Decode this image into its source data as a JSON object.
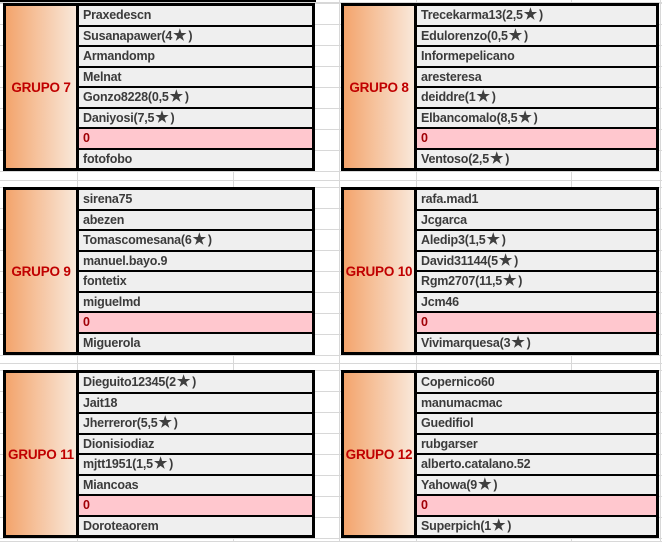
{
  "colors": {
    "border": "#000000",
    "gridline": "#d8d8d8",
    "row_bg": "#efefef",
    "zero_bg": "#ffc7ce",
    "zero_text": "#a00006",
    "label_text": "#c00000",
    "label_gradient_start": "#f3a46c",
    "label_gradient_end": "#f9e8da",
    "member_text": "#3b3b3b",
    "star": "#3f3f3f"
  },
  "groups": [
    {
      "label": "GRUPO 7",
      "rows": [
        "Praxedescn",
        "Susanapawer(4★)",
        "Armandomp",
        "Melnat",
        "Gonzo8228(0,5★)",
        "Daniyosi(7,5★)",
        "0",
        "fotofobo"
      ]
    },
    {
      "label": "GRUPO 8",
      "rows": [
        "Trecekarma13(2,5★)",
        "Edulorenzo(0,5★)",
        "Informepelicano",
        "aresteresa",
        "deiddre(1★)",
        "Elbancomalo(8,5★)",
        "0",
        "Ventoso(2,5★)"
      ]
    },
    {
      "label": "GRUPO 9",
      "rows": [
        "sirena75",
        "abezen",
        "Tomascomesana(6★)",
        "manuel.bayo.9",
        "fontetix",
        "miguelmd",
        "0",
        "Miguerola"
      ]
    },
    {
      "label": "GRUPO 10",
      "rows": [
        "rafa.mad1",
        "Jcgarca",
        "Aledip3(1,5★)",
        "David31144(5★)",
        "Rgm2707(11,5★)",
        "Jcm46",
        "0",
        "Vivimarquesa(3★)"
      ]
    },
    {
      "label": "GRUPO 11",
      "rows": [
        "Dieguito12345(2★)",
        "Jait18",
        "Jherreror(5,5★)",
        "Dionisiodiaz",
        "mjtt1951(1,5★)",
        "Miancoas",
        "0",
        "Doroteaorem"
      ]
    },
    {
      "label": "GRUPO 12",
      "rows": [
        "Copernico60",
        "manumacmac",
        "Guedifiol",
        "rubgarser",
        "alberto.catalano.52",
        "Yahowa(9★)",
        "0",
        "Superpich(1★)"
      ]
    }
  ]
}
